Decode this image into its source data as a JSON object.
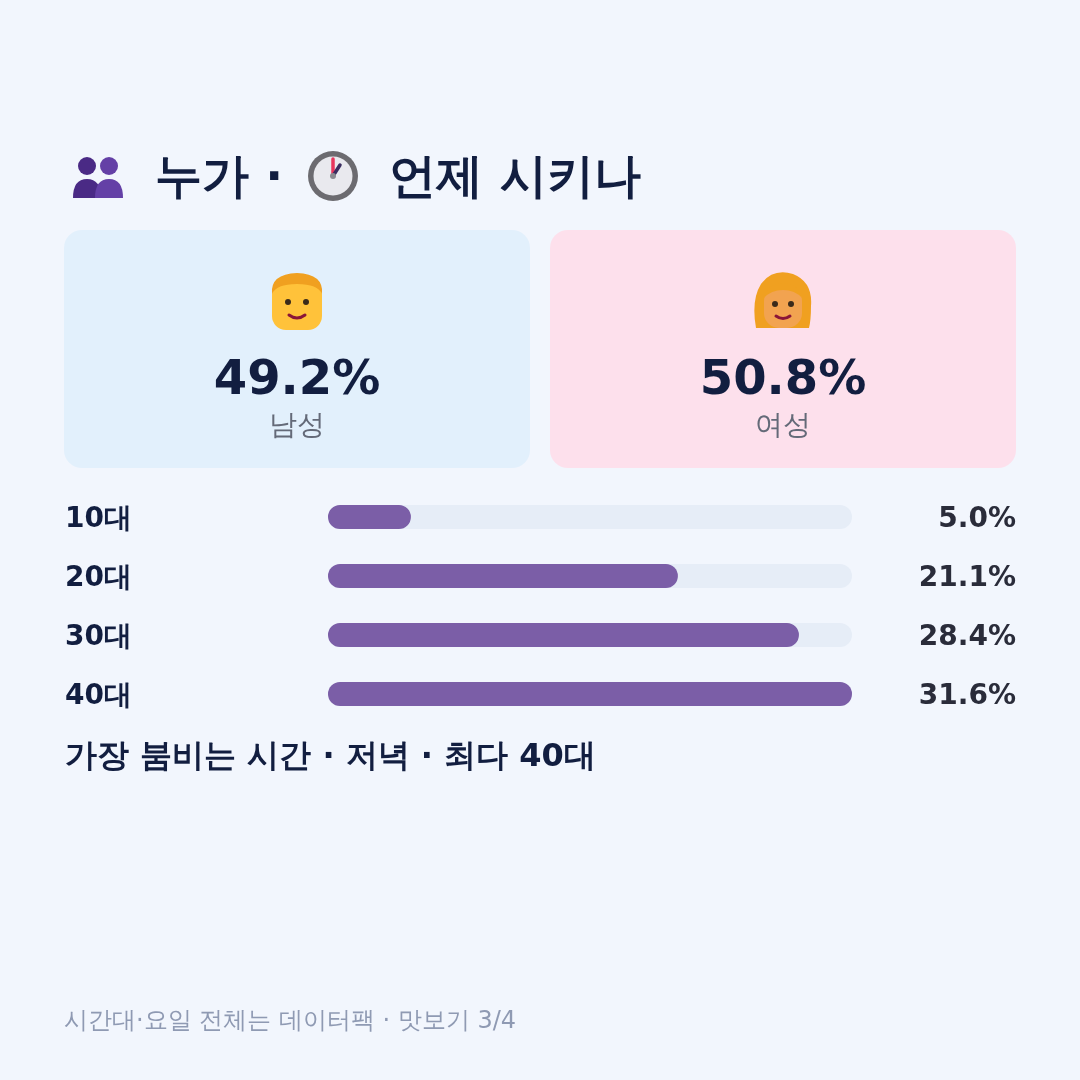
{
  "chart_data": [
    {
      "type": "other",
      "title": "누가 · 언제 시키나",
      "annotations": [
        "49.2%",
        "남성",
        "50.8%",
        "여성"
      ]
    },
    {
      "type": "bar",
      "orientation": "horizontal",
      "categories": [
        "10대",
        "20대",
        "30대",
        "40대"
      ],
      "values": [
        5.0,
        21.1,
        28.4,
        31.6
      ],
      "value_labels": [
        "5.0%",
        "21.1%",
        "28.4%",
        "31.6%"
      ],
      "color": "#7b5ea7",
      "tick_labels": "y",
      "annotations": [
        "가장 붐비는 시간 · 저녁 · 최다 40대",
        "시간대·요일 전체는 데이터팩 · 맛보기 3/4"
      ]
    }
  ]
}
